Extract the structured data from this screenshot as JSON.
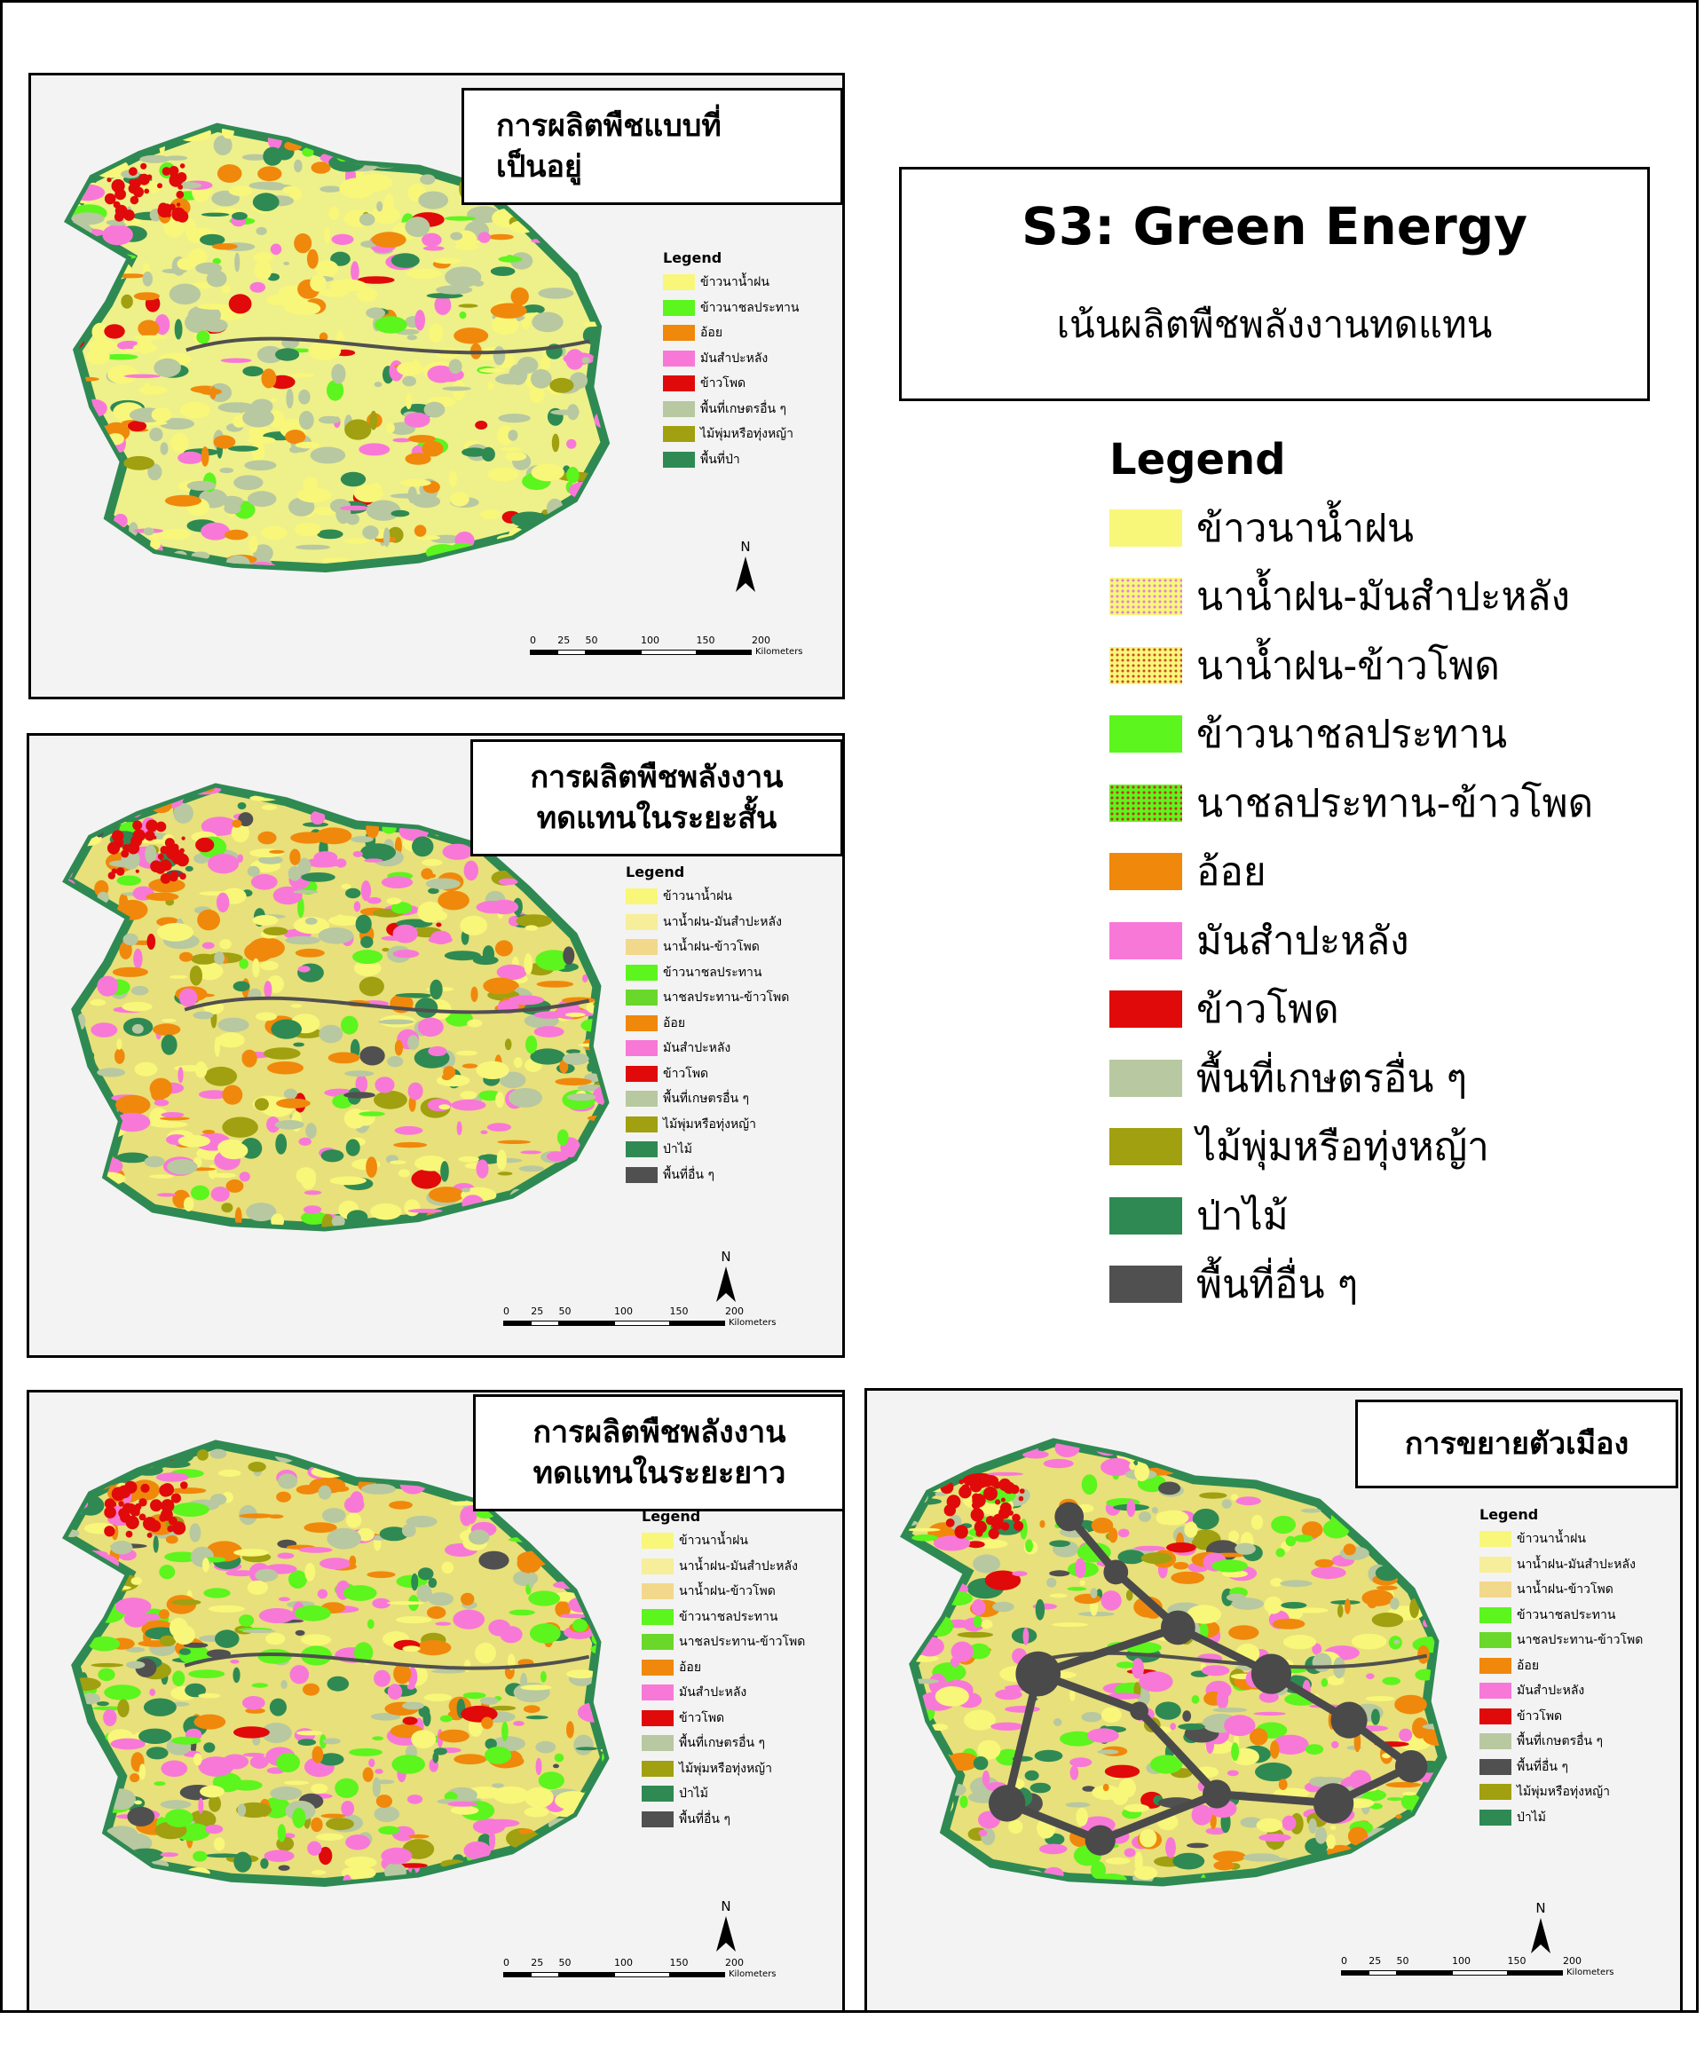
{
  "main": {
    "title": "S3: Green Energy",
    "subtitle": "เน้นผลิตพืชพลังงานทดแทน",
    "legend_heading": "Legend",
    "legend": [
      {
        "label": "ข้าวนาน้ำฝน",
        "color": "#f8f77a",
        "pattern": "solid"
      },
      {
        "label": "นาน้ำฝน-มันสำปะหลัง",
        "color": "#f8f77a",
        "dot_color": "#e080d8",
        "pattern": "dots"
      },
      {
        "label": "นาน้ำฝน-ข้าวโพด",
        "color": "#f8f77a",
        "dot_color": "#c8501e",
        "pattern": "dots"
      },
      {
        "label": "ข้าวนาชลประทาน",
        "color": "#5cf51e",
        "pattern": "solid"
      },
      {
        "label": "นาชลประทาน-ข้าวโพด",
        "color": "#5cf51e",
        "dot_color": "#d02a18",
        "pattern": "dots"
      },
      {
        "label": "อ้อย",
        "color": "#f0880c",
        "pattern": "solid"
      },
      {
        "label": "มันสำปะหลัง",
        "color": "#f878d8",
        "pattern": "solid"
      },
      {
        "label": "ข้าวโพด",
        "color": "#e00a0a",
        "pattern": "solid"
      },
      {
        "label": "พื้นที่เกษตรอื่น ๆ",
        "color": "#b8c8a0",
        "pattern": "solid"
      },
      {
        "label": "ไม้พุ่มหรือทุ่งหญ้า",
        "color": "#a0a010",
        "pattern": "solid"
      },
      {
        "label": "ป่าไม้",
        "color": "#2e8a52",
        "pattern": "solid"
      },
      {
        "label": "พื้นที่อื่น ๆ",
        "color": "#505050",
        "pattern": "solid"
      }
    ]
  },
  "panels": [
    {
      "title_lines": [
        "การผลิตพืชแบบที่",
        "เป็นอยู่"
      ],
      "legend_heading": "Legend",
      "legend": [
        {
          "label": "ข้าวนาน้ำฝน",
          "color": "#f8f77a"
        },
        {
          "label": "ข้าวนาชลประทาน",
          "color": "#5cf51e"
        },
        {
          "label": "อ้อย",
          "color": "#f0880c"
        },
        {
          "label": "มันสำปะหลัง",
          "color": "#f878d8"
        },
        {
          "label": "ข้าวโพด",
          "color": "#e00a0a"
        },
        {
          "label": "พื้นที่เกษตรอื่น ๆ",
          "color": "#b8c8a0"
        },
        {
          "label": "ไม้พุ่มหรือทุ่งหญ้า",
          "color": "#a0a010"
        },
        {
          "label": "พื้นที่ป่า",
          "color": "#2e8a52"
        }
      ],
      "scale": [
        "0",
        "25",
        "50",
        "100",
        "150",
        "200"
      ],
      "scale_unit": "Kilometers",
      "north": "N"
    },
    {
      "title_lines": [
        "การผลิตพืชพลังงาน",
        "ทดแทนในระยะสั้น"
      ],
      "legend_heading": "Legend",
      "legend": [
        {
          "label": "ข้าวนาน้ำฝน",
          "color": "#f8f77a"
        },
        {
          "label": "นาน้ำฝน-มันสำปะหลัง",
          "color": "#f6ee9a"
        },
        {
          "label": "นาน้ำฝน-ข้าวโพด",
          "color": "#f2d88a"
        },
        {
          "label": "ข้าวนาชลประทาน",
          "color": "#5cf51e"
        },
        {
          "label": "นาชลประทาน-ข้าวโพด",
          "color": "#6ad82a"
        },
        {
          "label": "อ้อย",
          "color": "#f0880c"
        },
        {
          "label": "มันสำปะหลัง",
          "color": "#f878d8"
        },
        {
          "label": "ข้าวโพด",
          "color": "#e00a0a"
        },
        {
          "label": "พื้นที่เกษตรอื่น ๆ",
          "color": "#b8c8a0"
        },
        {
          "label": "ไม้พุ่มหรือทุ่งหญ้า",
          "color": "#a0a010"
        },
        {
          "label": "ป่าไม้",
          "color": "#2e8a52"
        },
        {
          "label": "พื้นที่อื่น ๆ",
          "color": "#505050"
        }
      ],
      "scale": [
        "0",
        "25",
        "50",
        "100",
        "150",
        "200"
      ],
      "scale_unit": "Kilometers",
      "north": "N"
    },
    {
      "title_lines": [
        "การผลิตพืชพลังงาน",
        "ทดแทนในระยะยาว"
      ],
      "legend_heading": "Legend",
      "legend": [
        {
          "label": "ข้าวนาน้ำฝน",
          "color": "#f8f77a"
        },
        {
          "label": "นาน้ำฝน-มันสำปะหลัง",
          "color": "#f6ee9a"
        },
        {
          "label": "นาน้ำฝน-ข้าวโพด",
          "color": "#f2d88a"
        },
        {
          "label": "ข้าวนาชลประทาน",
          "color": "#5cf51e"
        },
        {
          "label": "นาชลประทาน-ข้าวโพด",
          "color": "#6ad82a"
        },
        {
          "label": "อ้อย",
          "color": "#f0880c"
        },
        {
          "label": "มันสำปะหลัง",
          "color": "#f878d8"
        },
        {
          "label": "ข้าวโพด",
          "color": "#e00a0a"
        },
        {
          "label": "พื้นที่เกษตรอื่น ๆ",
          "color": "#b8c8a0"
        },
        {
          "label": "ไม้พุ่มหรือทุ่งหญ้า",
          "color": "#a0a010"
        },
        {
          "label": "ป่าไม้",
          "color": "#2e8a52"
        },
        {
          "label": "พื้นที่อื่น ๆ",
          "color": "#505050"
        }
      ],
      "scale": [
        "0",
        "25",
        "50",
        "100",
        "150",
        "200"
      ],
      "scale_unit": "Kilometers",
      "north": "N"
    },
    {
      "title_lines": [
        "การขยายตัวเมือง"
      ],
      "legend_heading": "Legend",
      "legend": [
        {
          "label": "ข้าวนาน้ำฝน",
          "color": "#f8f77a"
        },
        {
          "label": "นาน้ำฝน-มันสำปะหลัง",
          "color": "#f6ee9a"
        },
        {
          "label": "นาน้ำฝน-ข้าวโพด",
          "color": "#f2d88a"
        },
        {
          "label": "ข้าวนาชลประทาน",
          "color": "#5cf51e"
        },
        {
          "label": "นาชลประทาน-ข้าวโพด",
          "color": "#6ad82a"
        },
        {
          "label": "อ้อย",
          "color": "#f0880c"
        },
        {
          "label": "มันสำปะหลัง",
          "color": "#f878d8"
        },
        {
          "label": "ข้าวโพด",
          "color": "#e00a0a"
        },
        {
          "label": "พื้นที่เกษตรอื่น ๆ",
          "color": "#b8c8a0"
        },
        {
          "label": "พื้นที่อื่น ๆ",
          "color": "#505050"
        },
        {
          "label": "ไม้พุ่มหรือทุ่งหญ้า",
          "color": "#a0a010"
        },
        {
          "label": "ป่าไม้",
          "color": "#2e8a52"
        }
      ],
      "scale": [
        "0",
        "25",
        "50",
        "100",
        "150",
        "200"
      ],
      "scale_unit": "Kilometers",
      "north": "N"
    }
  ]
}
